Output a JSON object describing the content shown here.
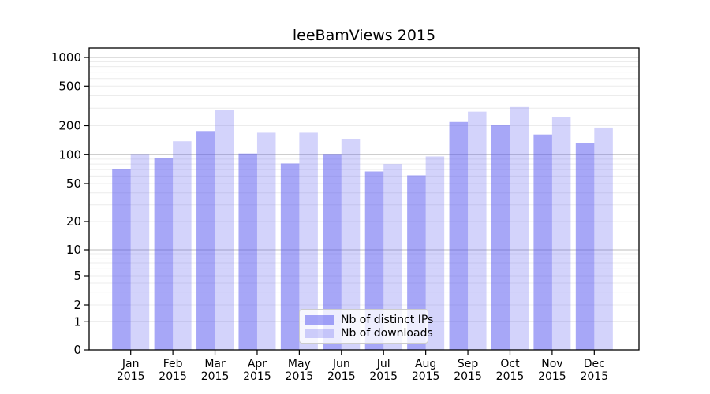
{
  "title": "leeBamViews 2015",
  "chart_data": {
    "type": "bar",
    "title": "leeBamViews 2015",
    "xlabel": "",
    "ylabel": "",
    "yscale": "symlog",
    "yticks": [
      1000,
      500,
      200,
      100,
      50,
      20,
      10,
      5,
      2,
      1,
      0
    ],
    "ylim": [
      0,
      1300
    ],
    "grid": true,
    "legend_position": "lower center",
    "categories": [
      "Jan",
      "Feb",
      "Mar",
      "Apr",
      "May",
      "Jun",
      "Jul",
      "Aug",
      "Sep",
      "Oct",
      "Nov",
      "Dec"
    ],
    "year_label": "2015",
    "series": [
      {
        "name": "Nb of distinct IPs",
        "color": "rgba(80,80,240,0.5)",
        "values": [
          71,
          92,
          176,
          103,
          81,
          100,
          67,
          61,
          218,
          203,
          162,
          131
        ]
      },
      {
        "name": "Nb of downloads",
        "color": "rgba(80,80,240,0.25)",
        "values": [
          100,
          138,
          287,
          169,
          169,
          144,
          80,
          96,
          277,
          308,
          246,
          191
        ]
      }
    ]
  }
}
